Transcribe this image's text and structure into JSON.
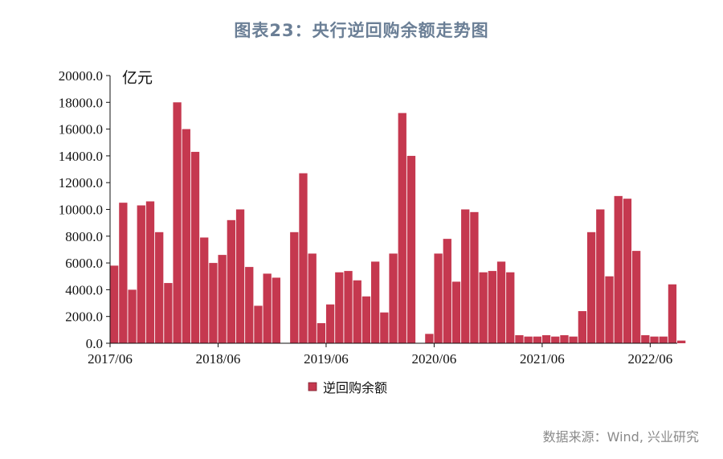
{
  "title": "图表23：央行逆回购余额走势图",
  "source": "数据来源：Wind, 兴业研究",
  "chart_data": {
    "type": "area",
    "title": "图表23：央行逆回购余额走势图",
    "ylabel": "亿元",
    "xlabel": "",
    "ylim": [
      0,
      20000
    ],
    "xlim": [
      "2017-06",
      "2022-09"
    ],
    "y_ticks": [
      "0.0",
      "2000.0",
      "4000.0",
      "6000.0",
      "8000.0",
      "10000.0",
      "12000.0",
      "14000.0",
      "16000.0",
      "18000.0",
      "20000.0"
    ],
    "x_ticks": [
      "2017/06",
      "2018/06",
      "2019/06",
      "2020/06",
      "2021/06",
      "2022/06"
    ],
    "legend": "bottom",
    "grid": false,
    "color": "#c5384f",
    "series": [
      {
        "name": "逆回购余额",
        "x": [
          "2017-06",
          "2017-07",
          "2017-08",
          "2017-09",
          "2017-10",
          "2017-11",
          "2017-12",
          "2018-01",
          "2018-02",
          "2018-03",
          "2018-04",
          "2018-05",
          "2018-06",
          "2018-07",
          "2018-08",
          "2018-09",
          "2018-10",
          "2018-11",
          "2018-12",
          "2019-01",
          "2019-02",
          "2019-03",
          "2019-04",
          "2019-05",
          "2019-06",
          "2019-07",
          "2019-08",
          "2019-09",
          "2019-10",
          "2019-11",
          "2019-12",
          "2020-01",
          "2020-02",
          "2020-03",
          "2020-04",
          "2020-05",
          "2020-06",
          "2020-07",
          "2020-08",
          "2020-09",
          "2020-10",
          "2020-11",
          "2020-12",
          "2021-01",
          "2021-02",
          "2021-03",
          "2021-04",
          "2021-05",
          "2021-06",
          "2021-07",
          "2021-08",
          "2021-09",
          "2021-10",
          "2021-11",
          "2021-12",
          "2022-01",
          "2022-02",
          "2022-03",
          "2022-04",
          "2022-05",
          "2022-06",
          "2022-07",
          "2022-08",
          "2022-09"
        ],
        "values": [
          5800,
          10500,
          4000,
          10300,
          10600,
          8300,
          4500,
          18000,
          16000,
          14300,
          7900,
          6000,
          6600,
          9200,
          10000,
          5700,
          2800,
          5200,
          4900,
          0,
          8300,
          12700,
          6700,
          1500,
          2900,
          5300,
          5400,
          4700,
          3500,
          6100,
          2300,
          6700,
          17200,
          14000,
          0,
          700,
          6700,
          7800,
          4600,
          10000,
          9800,
          5300,
          5400,
          6100,
          5300,
          600,
          500,
          500,
          600,
          500,
          600,
          500,
          2400,
          8300,
          10000,
          5000,
          11000,
          10800,
          6900,
          600,
          500,
          500,
          4400,
          200
        ]
      }
    ]
  }
}
